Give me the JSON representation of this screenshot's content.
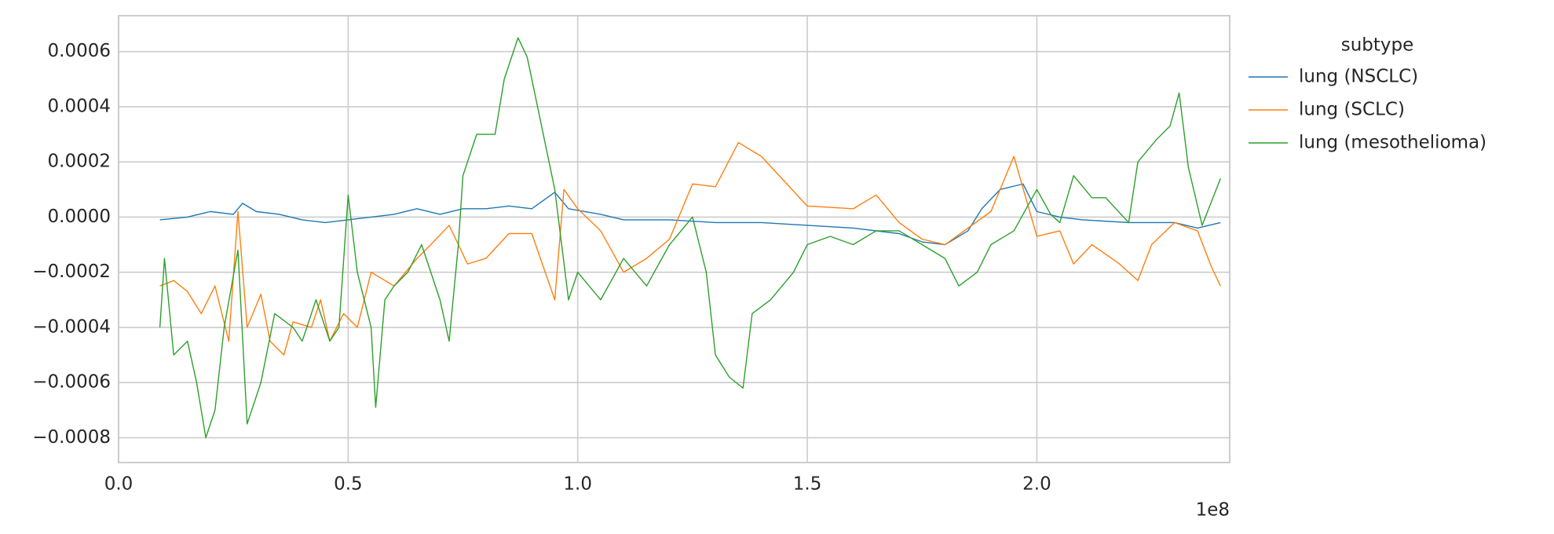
{
  "chart_data": {
    "type": "line",
    "x_offset_label": "1e8",
    "legend_title": "subtype",
    "legend": "outside-right",
    "grid": true,
    "xlim": [
      0,
      2.42
    ],
    "xticks": [
      {
        "value": 0,
        "label": "0.0"
      },
      0.5,
      {
        "value": 1,
        "label": "1.0"
      },
      1.5,
      {
        "value": 2,
        "label": "2.0"
      }
    ],
    "ylim": [
      -0.00089,
      0.00073
    ],
    "yticks": [
      {
        "value": -0.0008,
        "label": "−0.0008"
      },
      {
        "value": -0.0006,
        "label": "−0.0006"
      },
      {
        "value": -0.0004,
        "label": "−0.0004"
      },
      {
        "value": -0.0002,
        "label": "−0.0002"
      },
      {
        "value": 0,
        "label": "0.0000"
      },
      0.0002,
      0.0004,
      0.0006
    ],
    "series": [
      {
        "name": "lung (NSCLC)",
        "color": "#1f77b4",
        "x": [
          0.09,
          0.15,
          0.2,
          0.25,
          0.27,
          0.3,
          0.35,
          0.4,
          0.45,
          0.5,
          0.6,
          0.65,
          0.7,
          0.75,
          0.8,
          0.85,
          0.9,
          0.95,
          0.98,
          1.05,
          1.1,
          1.2,
          1.3,
          1.4,
          1.5,
          1.6,
          1.7,
          1.75,
          1.8,
          1.85,
          1.88,
          1.92,
          1.97,
          2.0,
          2.05,
          2.1,
          2.2,
          2.3,
          2.35,
          2.4
        ],
        "values": [
          -1e-05,
          0,
          2e-05,
          1e-05,
          5e-05,
          2e-05,
          1e-05,
          -1e-05,
          -2e-05,
          -1e-05,
          1e-05,
          3e-05,
          1e-05,
          3e-05,
          3e-05,
          4e-05,
          3e-05,
          9e-05,
          3e-05,
          1e-05,
          -1e-05,
          -1e-05,
          -2e-05,
          -2e-05,
          -3e-05,
          -4e-05,
          -6e-05,
          -9e-05,
          -0.0001,
          -5e-05,
          3e-05,
          0.0001,
          0.00012,
          2e-05,
          0,
          -1e-05,
          -2e-05,
          -2e-05,
          -4e-05,
          -2e-05
        ]
      },
      {
        "name": "lung (SCLC)",
        "color": "#ff7f0e",
        "x": [
          0.09,
          0.12,
          0.15,
          0.18,
          0.21,
          0.24,
          0.26,
          0.28,
          0.31,
          0.33,
          0.36,
          0.38,
          0.42,
          0.44,
          0.46,
          0.49,
          0.52,
          0.55,
          0.6,
          0.65,
          0.68,
          0.72,
          0.76,
          0.8,
          0.85,
          0.9,
          0.95,
          0.97,
          1.0,
          1.05,
          1.1,
          1.15,
          1.2,
          1.25,
          1.3,
          1.35,
          1.4,
          1.45,
          1.5,
          1.6,
          1.65,
          1.7,
          1.75,
          1.8,
          1.85,
          1.9,
          1.95,
          2.0,
          2.05,
          2.08,
          2.12,
          2.18,
          2.22,
          2.25,
          2.3,
          2.35,
          2.38,
          2.4
        ],
        "values": [
          -0.00025,
          -0.00023,
          -0.00027,
          -0.00035,
          -0.00025,
          -0.00045,
          2e-05,
          -0.0004,
          -0.00028,
          -0.00045,
          -0.0005,
          -0.00038,
          -0.0004,
          -0.0003,
          -0.00045,
          -0.00035,
          -0.0004,
          -0.0002,
          -0.00025,
          -0.00015,
          -0.0001,
          -3e-05,
          -0.00017,
          -0.00015,
          -6e-05,
          -6e-05,
          -0.0003,
          0.0001,
          3e-05,
          -5e-05,
          -0.0002,
          -0.00015,
          -8e-05,
          0.00012,
          0.00011,
          0.00027,
          0.00022,
          0.00013,
          4e-05,
          3e-05,
          8e-05,
          -2e-05,
          -8e-05,
          -0.0001,
          -4e-05,
          2e-05,
          0.00022,
          -7e-05,
          -5e-05,
          -0.00017,
          -0.0001,
          -0.00017,
          -0.00023,
          -0.0001,
          -2e-05,
          -5e-05,
          -0.00018,
          -0.00025
        ]
      },
      {
        "name": "lung (mesothelioma)",
        "color": "#2ca02c",
        "x": [
          0.09,
          0.1,
          0.12,
          0.15,
          0.17,
          0.19,
          0.21,
          0.23,
          0.26,
          0.28,
          0.31,
          0.34,
          0.38,
          0.4,
          0.43,
          0.46,
          0.48,
          0.5,
          0.52,
          0.55,
          0.56,
          0.58,
          0.6,
          0.63,
          0.66,
          0.7,
          0.72,
          0.74,
          0.75,
          0.78,
          0.82,
          0.84,
          0.87,
          0.89,
          0.95,
          0.98,
          1.0,
          1.05,
          1.1,
          1.15,
          1.2,
          1.25,
          1.28,
          1.3,
          1.33,
          1.36,
          1.38,
          1.42,
          1.47,
          1.5,
          1.55,
          1.6,
          1.65,
          1.7,
          1.75,
          1.8,
          1.83,
          1.87,
          1.9,
          1.95,
          2.0,
          2.03,
          2.05,
          2.08,
          2.12,
          2.15,
          2.2,
          2.22,
          2.26,
          2.29,
          2.31,
          2.33,
          2.36,
          2.4
        ],
        "values": [
          -0.0004,
          -0.00015,
          -0.0005,
          -0.00045,
          -0.0006,
          -0.0008,
          -0.0007,
          -0.0004,
          -0.00012,
          -0.00075,
          -0.0006,
          -0.00035,
          -0.0004,
          -0.00045,
          -0.0003,
          -0.00045,
          -0.0004,
          8e-05,
          -0.0002,
          -0.0004,
          -0.00069,
          -0.0003,
          -0.00025,
          -0.0002,
          -0.0001,
          -0.0003,
          -0.00045,
          -0.0001,
          0.00015,
          0.0003,
          0.0003,
          0.0005,
          0.00065,
          0.00058,
          0.0001,
          -0.0003,
          -0.0002,
          -0.0003,
          -0.00015,
          -0.00025,
          -0.0001,
          0,
          -0.0002,
          -0.0005,
          -0.00058,
          -0.00062,
          -0.00035,
          -0.0003,
          -0.0002,
          -0.0001,
          -7e-05,
          -0.0001,
          -5e-05,
          -5e-05,
          -0.0001,
          -0.00015,
          -0.00025,
          -0.0002,
          -0.0001,
          -5e-05,
          0.0001,
          1e-05,
          -2e-05,
          0.00015,
          7e-05,
          7e-05,
          -2e-05,
          0.0002,
          0.00028,
          0.00033,
          0.00045,
          0.00018,
          -3e-05,
          0.00014
        ]
      }
    ]
  }
}
